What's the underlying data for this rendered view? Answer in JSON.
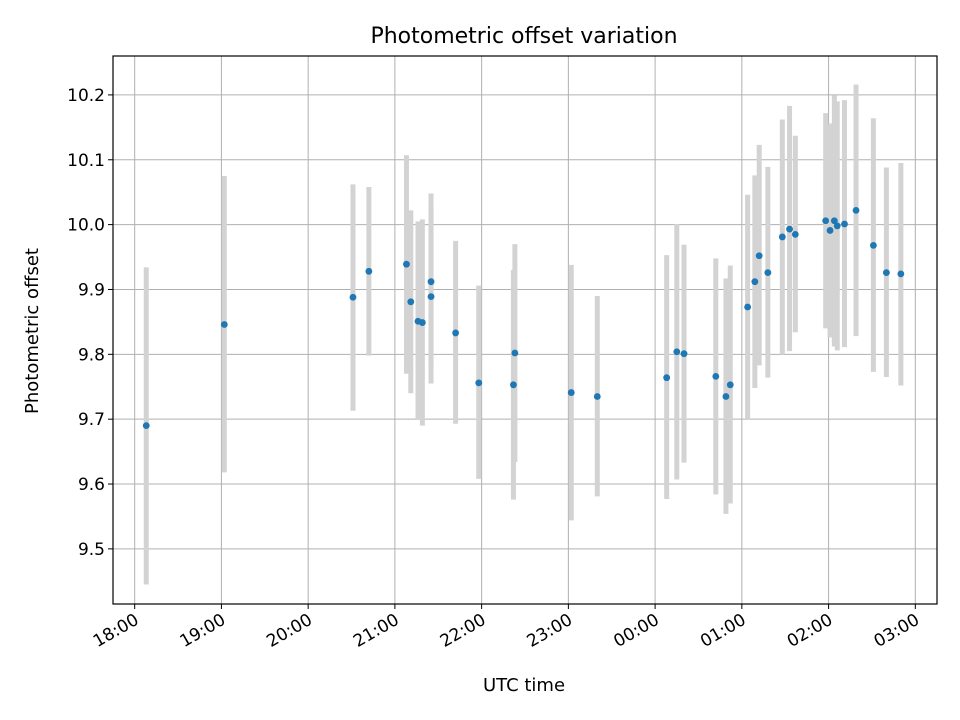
{
  "chart_data": {
    "type": "scatter",
    "title": "Photometric offset variation",
    "xlabel": "UTC time",
    "ylabel": "Photometric offset",
    "x_reference_date": "",
    "x_ticks": [
      "18:00",
      "19:00",
      "20:00",
      "21:00",
      "22:00",
      "23:00",
      "00:00",
      "01:00",
      "02:00",
      "03:00"
    ],
    "y_ticks": [
      "9.5",
      "9.6",
      "9.7",
      "9.8",
      "9.9",
      "10.0",
      "10.1",
      "10.2"
    ],
    "xlim": [
      "17:45",
      "03:15"
    ],
    "ylim": [
      9.415,
      10.26
    ],
    "grid": true,
    "colors": {
      "point": "#1f77b4",
      "errorbar": "#d3d3d3",
      "grid": "#b0b0b0"
    },
    "points": [
      {
        "x": "18:08",
        "y": 9.69,
        "err_low": 9.445,
        "err_high": 9.934
      },
      {
        "x": "19:02",
        "y": 9.846,
        "err_low": 9.618,
        "err_high": 10.075
      },
      {
        "x": "20:31",
        "y": 9.888,
        "err_low": 9.713,
        "err_high": 10.062
      },
      {
        "x": "20:42",
        "y": 9.928,
        "err_low": 9.798,
        "err_high": 10.058
      },
      {
        "x": "21:08",
        "y": 9.939,
        "err_low": 9.77,
        "err_high": 10.107
      },
      {
        "x": "21:11",
        "y": 9.881,
        "err_low": 9.74,
        "err_high": 10.022
      },
      {
        "x": "21:16",
        "y": 9.851,
        "err_low": 9.7,
        "err_high": 10.005
      },
      {
        "x": "21:19",
        "y": 9.849,
        "err_low": 9.69,
        "err_high": 10.008
      },
      {
        "x": "21:25",
        "y": 9.912,
        "err_low": 9.78,
        "err_high": 10.048
      },
      {
        "x": "21:25",
        "y": 9.889,
        "err_low": 9.755,
        "err_high": 10.028
      },
      {
        "x": "21:42",
        "y": 9.833,
        "err_low": 9.693,
        "err_high": 9.975
      },
      {
        "x": "21:58",
        "y": 9.756,
        "err_low": 9.608,
        "err_high": 9.906
      },
      {
        "x": "22:22",
        "y": 9.753,
        "err_low": 9.576,
        "err_high": 9.93
      },
      {
        "x": "22:23",
        "y": 9.802,
        "err_low": 9.634,
        "err_high": 9.97
      },
      {
        "x": "23:02",
        "y": 9.741,
        "err_low": 9.544,
        "err_high": 9.938
      },
      {
        "x": "23:20",
        "y": 9.735,
        "err_low": 9.581,
        "err_high": 9.89
      },
      {
        "x": "00:08",
        "y": 9.764,
        "err_low": 9.577,
        "err_high": 9.953
      },
      {
        "x": "00:15",
        "y": 9.804,
        "err_low": 9.607,
        "err_high": 10.001
      },
      {
        "x": "00:20",
        "y": 9.801,
        "err_low": 9.633,
        "err_high": 9.969
      },
      {
        "x": "00:42",
        "y": 9.766,
        "err_low": 9.584,
        "err_high": 9.948
      },
      {
        "x": "00:49",
        "y": 9.735,
        "err_low": 9.554,
        "err_high": 9.917
      },
      {
        "x": "00:52",
        "y": 9.753,
        "err_low": 9.57,
        "err_high": 9.937
      },
      {
        "x": "01:04",
        "y": 9.873,
        "err_low": 9.7,
        "err_high": 10.046
      },
      {
        "x": "01:09",
        "y": 9.912,
        "err_low": 9.748,
        "err_high": 10.076
      },
      {
        "x": "01:12",
        "y": 9.952,
        "err_low": 9.783,
        "err_high": 10.123
      },
      {
        "x": "01:18",
        "y": 9.926,
        "err_low": 9.764,
        "err_high": 10.089
      },
      {
        "x": "01:28",
        "y": 9.981,
        "err_low": 9.8,
        "err_high": 10.162
      },
      {
        "x": "01:33",
        "y": 9.993,
        "err_low": 9.805,
        "err_high": 10.183
      },
      {
        "x": "01:37",
        "y": 9.985,
        "err_low": 9.834,
        "err_high": 10.137
      },
      {
        "x": "01:58",
        "y": 10.006,
        "err_low": 9.84,
        "err_high": 10.172
      },
      {
        "x": "02:01",
        "y": 9.991,
        "err_low": 9.826,
        "err_high": 10.156
      },
      {
        "x": "02:04",
        "y": 10.006,
        "err_low": 9.812,
        "err_high": 10.199
      },
      {
        "x": "02:06",
        "y": 9.998,
        "err_low": 9.806,
        "err_high": 10.19
      },
      {
        "x": "02:11",
        "y": 10.001,
        "err_low": 9.811,
        "err_high": 10.192
      },
      {
        "x": "02:19",
        "y": 10.022,
        "err_low": 9.828,
        "err_high": 10.216
      },
      {
        "x": "02:31",
        "y": 9.968,
        "err_low": 9.773,
        "err_high": 10.164
      },
      {
        "x": "02:40",
        "y": 9.926,
        "err_low": 9.765,
        "err_high": 10.088
      },
      {
        "x": "02:50",
        "y": 9.924,
        "err_low": 9.752,
        "err_high": 10.095
      }
    ]
  }
}
